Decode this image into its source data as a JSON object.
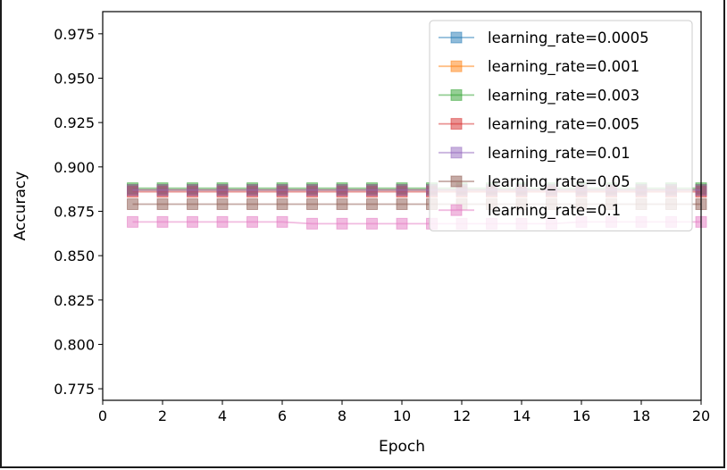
{
  "chart_data": {
    "type": "line",
    "title": "",
    "xlabel": "Epoch",
    "ylabel": "Accuracy",
    "xlim": [
      0,
      20
    ],
    "ylim": [
      0.7685,
      0.9875
    ],
    "xticks": [
      0,
      2,
      4,
      6,
      8,
      10,
      12,
      14,
      16,
      18,
      20
    ],
    "yticks": [
      0.775,
      0.8,
      0.825,
      0.85,
      0.875,
      0.9,
      0.925,
      0.95,
      0.975
    ],
    "xtick_labels": [
      "0",
      "2",
      "4",
      "6",
      "8",
      "10",
      "12",
      "14",
      "16",
      "18",
      "20"
    ],
    "ytick_labels": [
      "0.775",
      "0.800",
      "0.825",
      "0.850",
      "0.875",
      "0.900",
      "0.925",
      "0.950",
      "0.975"
    ],
    "grid": false,
    "legend": "top-right",
    "marker": "square",
    "x": [
      1,
      2,
      3,
      4,
      5,
      6,
      7,
      8,
      9,
      10,
      11,
      12,
      13,
      14,
      15,
      16,
      17,
      18,
      19,
      20
    ],
    "series": [
      {
        "name": "learning_rate=0.0005",
        "color": "#1f77b4",
        "values": [
          0.887,
          0.887,
          0.887,
          0.887,
          0.887,
          0.887,
          0.887,
          0.887,
          0.887,
          0.887,
          0.887,
          0.887,
          0.887,
          0.887,
          0.887,
          0.887,
          0.887,
          0.887,
          0.887,
          0.887
        ]
      },
      {
        "name": "learning_rate=0.001",
        "color": "#ff7f0e",
        "values": [
          0.887,
          0.887,
          0.887,
          0.887,
          0.887,
          0.887,
          0.887,
          0.887,
          0.887,
          0.887,
          0.887,
          0.887,
          0.887,
          0.887,
          0.887,
          0.887,
          0.887,
          0.887,
          0.887,
          0.887
        ]
      },
      {
        "name": "learning_rate=0.003",
        "color": "#2ca02c",
        "values": [
          0.888,
          0.888,
          0.888,
          0.888,
          0.888,
          0.888,
          0.888,
          0.888,
          0.888,
          0.888,
          0.888,
          0.888,
          0.888,
          0.888,
          0.888,
          0.888,
          0.888,
          0.888,
          0.888,
          0.888
        ]
      },
      {
        "name": "learning_rate=0.005",
        "color": "#d62728",
        "values": [
          0.886,
          0.886,
          0.886,
          0.886,
          0.886,
          0.886,
          0.886,
          0.886,
          0.886,
          0.886,
          0.886,
          0.886,
          0.886,
          0.886,
          0.886,
          0.886,
          0.886,
          0.886,
          0.886,
          0.886
        ]
      },
      {
        "name": "learning_rate=0.01",
        "color": "#9467bd",
        "values": [
          0.887,
          0.887,
          0.887,
          0.887,
          0.887,
          0.887,
          0.887,
          0.887,
          0.887,
          0.887,
          0.887,
          0.887,
          0.887,
          0.887,
          0.887,
          0.887,
          0.887,
          0.887,
          0.887,
          0.887
        ]
      },
      {
        "name": "learning_rate=0.05",
        "color": "#8c564b",
        "values": [
          0.879,
          0.879,
          0.879,
          0.879,
          0.879,
          0.879,
          0.879,
          0.879,
          0.879,
          0.879,
          0.879,
          0.879,
          0.879,
          0.879,
          0.879,
          0.879,
          0.879,
          0.879,
          0.879,
          0.879
        ]
      },
      {
        "name": "learning_rate=0.1",
        "color": "#e377c2",
        "values": [
          0.869,
          0.869,
          0.869,
          0.869,
          0.869,
          0.869,
          0.868,
          0.868,
          0.868,
          0.868,
          0.868,
          0.868,
          0.868,
          0.868,
          0.868,
          0.869,
          0.869,
          0.869,
          0.869,
          0.869
        ]
      }
    ]
  }
}
